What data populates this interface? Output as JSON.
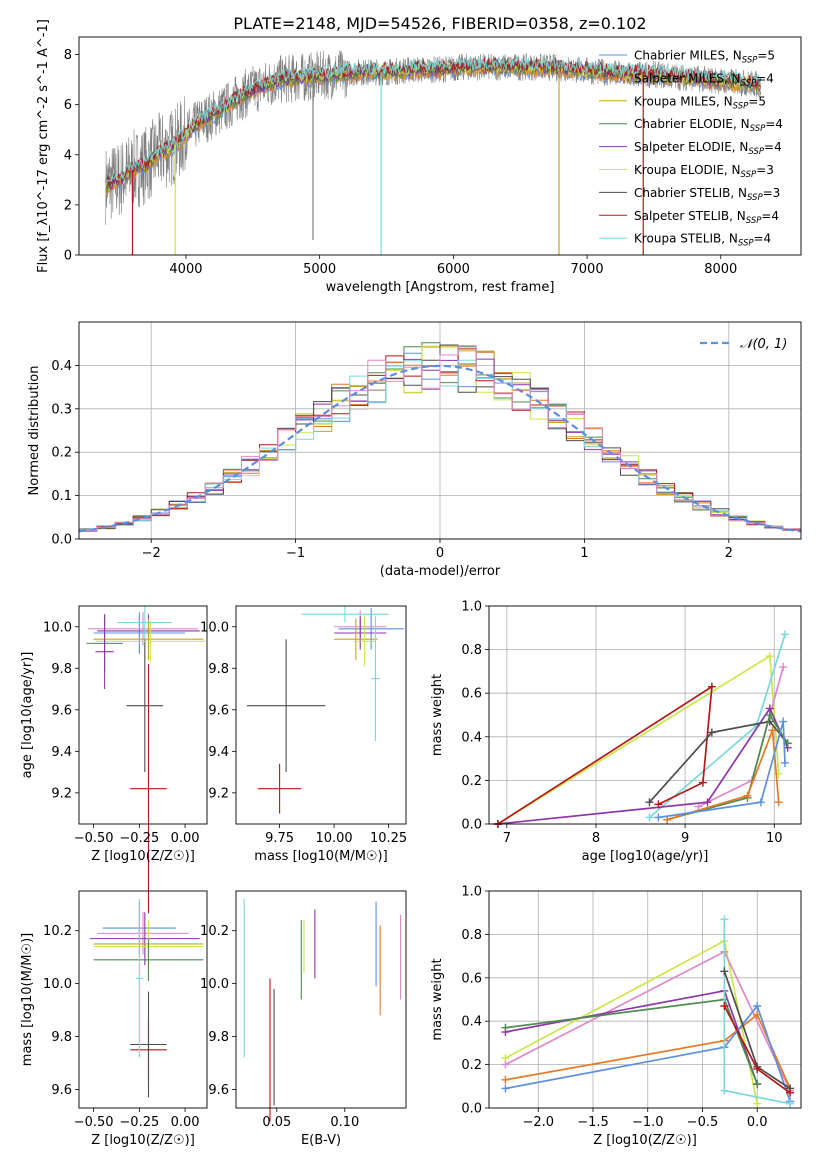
{
  "title": "PLATE=2148, MJD=54526, FIBERID=0358, z=0.102",
  "colors": {
    "chab_miles": "#5b8fe0",
    "salp_miles": "#e47a27",
    "kroupa_miles": "#c9a227",
    "chab_elodie": "#4f8a4f",
    "salp_elodie": "#8e35a8",
    "kroupa_elodie": "#c9e84a",
    "chab_stelib": "#4d4d4d",
    "salp_stelib": "#b41818",
    "kroupa_stelib": "#7ad8dc",
    "pink": "#e089c9",
    "data": "#808080",
    "gauss": "#5b8fe0"
  },
  "chart_data": [
    {
      "type": "line",
      "id": "spectrum",
      "xlabel": "wavelength [Angstrom, rest frame]",
      "ylabel": "Flux [f_λ10^-17 erg cm^-2 s^-1 A^-1]",
      "xlim": [
        3200,
        8600
      ],
      "ylim": [
        0,
        8.7
      ],
      "xticks": [
        4000,
        5000,
        6000,
        7000,
        8000
      ],
      "yticks": [
        0,
        2,
        4,
        6,
        8
      ],
      "legend_position": "right",
      "legend": [
        {
          "base": "Chabrier MILES, N",
          "sub": "SSP",
          "end": "=5",
          "color": "chab_miles"
        },
        {
          "base": "Salpeter MILES, N",
          "sub": "SSP",
          "end": "=4",
          "color": "salp_miles"
        },
        {
          "base": "Kroupa MILES, N",
          "sub": "SSP",
          "end": "=5",
          "color": "kroupa_miles"
        },
        {
          "base": "Chabrier ELODIE, N",
          "sub": "SSP",
          "end": "=4",
          "color": "chab_elodie"
        },
        {
          "base": "Salpeter ELODIE, N",
          "sub": "SSP",
          "end": "=4",
          "color": "salp_elodie"
        },
        {
          "base": "Kroupa ELODIE, N",
          "sub": "SSP",
          "end": "=3",
          "color": "kroupa_elodie"
        },
        {
          "base": "Chabrier STELIB, N",
          "sub": "SSP",
          "end": "=3",
          "color": "chab_stelib"
        },
        {
          "base": "Salpeter STELIB, N",
          "sub": "SSP",
          "end": "=4",
          "color": "salp_stelib"
        },
        {
          "base": "Kroupa STELIB, N",
          "sub": "SSP",
          "end": "=4",
          "color": "kroupa_stelib"
        }
      ],
      "continuum": {
        "x": [
          3400,
          3500,
          3600,
          3700,
          3800,
          3900,
          4000,
          4100,
          4200,
          4300,
          4400,
          4500,
          4700,
          4900,
          5100,
          5300,
          5500,
          5700,
          5900,
          6100,
          6300,
          6500,
          6700,
          6900,
          7100,
          7300,
          7500,
          7700,
          7900,
          8100,
          8300
        ],
        "y": [
          2.8,
          3.0,
          3.4,
          3.6,
          4.1,
          4.3,
          4.8,
          5.3,
          5.6,
          5.9,
          6.3,
          6.6,
          7.0,
          7.1,
          7.2,
          7.3,
          7.3,
          7.4,
          7.4,
          7.5,
          7.5,
          7.5,
          7.5,
          7.4,
          7.3,
          7.2,
          7.2,
          7.1,
          7.0,
          6.9,
          6.8
        ]
      },
      "spikes": [
        {
          "x": 3600,
          "y": 0.0,
          "color": "salp_stelib"
        },
        {
          "x": 3920,
          "y": 0.0,
          "color": "kroupa_elodie"
        },
        {
          "x": 4950,
          "y": 0.6,
          "color": "data"
        },
        {
          "x": 5460,
          "y": 0.0,
          "color": "kroupa_stelib"
        },
        {
          "x": 6790,
          "y": 0.0,
          "color": "kroupa_miles"
        },
        {
          "x": 7420,
          "y": 0.0,
          "color": "salp_stelib"
        }
      ]
    },
    {
      "type": "histogram",
      "id": "residuals",
      "xlabel": "(data-model)/error",
      "ylabel": "Normed distribution",
      "xlim": [
        -2.5,
        2.5
      ],
      "ylim": [
        0,
        0.5
      ],
      "xticks": [
        -2,
        -1,
        0,
        1,
        2
      ],
      "yticks": [
        0.0,
        0.1,
        0.2,
        0.3,
        0.4
      ],
      "grid": true,
      "legend": "𝒩(0, 1)",
      "legend_position": "top-right",
      "bins": 40
    },
    {
      "type": "errorbar",
      "id": "age_vs_Z",
      "xlabel": "Z [log10(Z/Z☉)]",
      "ylabel": "age  [log10(age/yr)]",
      "xlim": [
        -0.58,
        0.12
      ],
      "ylim": [
        9.05,
        10.1
      ],
      "xticks": [
        -0.5,
        -0.25,
        0.0
      ],
      "xticklabels": [
        "−0.50",
        "−0.25",
        "0.00"
      ],
      "yticks": [
        9.2,
        9.4,
        9.6,
        9.8,
        10.0
      ],
      "yticklabels": [
        "9.2",
        "9.4",
        "9.6",
        "9.8",
        "10.0"
      ],
      "points": [
        {
          "x": -0.2,
          "y": 9.22,
          "xe": 0.1,
          "ye": 0.6,
          "color": "salp_stelib"
        },
        {
          "x": -0.22,
          "y": 9.62,
          "xe": 0.1,
          "ye": 0.32,
          "color": "chab_stelib"
        },
        {
          "x": -0.25,
          "y": 9.97,
          "xe": 0.25,
          "ye": 0.1,
          "color": "chab_miles"
        },
        {
          "x": -0.2,
          "y": 9.98,
          "xe": 0.28,
          "ye": 0.08,
          "color": "salp_elodie"
        },
        {
          "x": -0.23,
          "y": 9.99,
          "xe": 0.3,
          "ye": 0.08,
          "color": "pink"
        },
        {
          "x": -0.2,
          "y": 9.94,
          "xe": 0.3,
          "ye": 0.1,
          "color": "kroupa_miles"
        },
        {
          "x": -0.19,
          "y": 9.93,
          "xe": 0.3,
          "ye": 0.1,
          "color": "kroupa_elodie"
        },
        {
          "x": -0.22,
          "y": 10.02,
          "xe": 0.15,
          "ye": 0.08,
          "color": "kroupa_stelib"
        },
        {
          "x": -0.44,
          "y": 9.92,
          "xe": 0.1,
          "ye": 0.14,
          "color": "chab_elodie"
        },
        {
          "x": -0.44,
          "y": 9.88,
          "xe": 0.05,
          "ye": 0.18,
          "color": "salp_elodie"
        }
      ]
    },
    {
      "type": "errorbar",
      "id": "age_vs_mass",
      "xlabel": "mass [log10(M/M☉)]",
      "ylabel": "",
      "xlim": [
        9.55,
        10.33
      ],
      "ylim": [
        9.05,
        10.1
      ],
      "xticks": [
        9.75,
        10.0,
        10.25
      ],
      "xticklabels": [
        "9.75",
        "10.00",
        "10.25"
      ],
      "yticks": [
        9.2,
        9.4,
        9.6,
        9.8,
        10.0
      ],
      "yticklabels": [
        "9.2",
        "9.4",
        "9.6",
        "9.8",
        "10.0"
      ],
      "points": [
        {
          "x": 9.75,
          "y": 9.22,
          "xe": 0.1,
          "ye": 0.12,
          "color": "salp_stelib"
        },
        {
          "x": 9.78,
          "y": 9.62,
          "xe": 0.18,
          "ye": 0.32,
          "color": "chab_stelib"
        },
        {
          "x": 10.17,
          "y": 9.99,
          "xe": 0.15,
          "ye": 0.1,
          "color": "chab_miles"
        },
        {
          "x": 10.12,
          "y": 10.0,
          "xe": 0.12,
          "ye": 0.08,
          "color": "pink"
        },
        {
          "x": 10.12,
          "y": 9.97,
          "xe": 0.12,
          "ye": 0.08,
          "color": "salp_elodie"
        },
        {
          "x": 10.1,
          "y": 9.94,
          "xe": 0.1,
          "ye": 0.1,
          "color": "kroupa_miles"
        },
        {
          "x": 10.14,
          "y": 9.93,
          "xe": 0.05,
          "ye": 0.12,
          "color": "kroupa_elodie"
        },
        {
          "x": 10.05,
          "y": 10.06,
          "xe": 0.2,
          "ye": 0.04,
          "color": "kroupa_stelib"
        },
        {
          "x": 10.19,
          "y": 9.75,
          "xe": 0.02,
          "ye": 0.3,
          "color": "kroupa_stelib"
        }
      ]
    },
    {
      "type": "line",
      "id": "weight_vs_age",
      "xlabel": "age  [log10(age/yr)]",
      "ylabel": "mass weight",
      "xlim": [
        6.8,
        10.3
      ],
      "ylim": [
        0,
        1.0
      ],
      "xticks": [
        7,
        8,
        9,
        10
      ],
      "yticks": [
        0.0,
        0.2,
        0.4,
        0.6,
        0.8,
        1.0
      ],
      "grid": true,
      "series": [
        {
          "color": "kroupa_elodie",
          "x": [
            6.9,
            9.95,
            10.05
          ],
          "y": [
            0.0,
            0.77,
            0.23
          ]
        },
        {
          "color": "kroupa_stelib",
          "x": [
            8.6,
            9.8,
            10.12
          ],
          "y": [
            0.03,
            0.45,
            0.87
          ]
        },
        {
          "color": "pink",
          "x": [
            9.15,
            9.75,
            10.1
          ],
          "y": [
            0.08,
            0.2,
            0.72
          ]
        },
        {
          "color": "salp_elodie",
          "x": [
            6.9,
            9.25,
            9.95,
            10.15
          ],
          "y": [
            0.0,
            0.1,
            0.53,
            0.35
          ]
        },
        {
          "color": "salp_stelib",
          "x": [
            8.7,
            9.2,
            9.3,
            6.9
          ],
          "y": [
            0.09,
            0.19,
            0.63,
            0.0
          ]
        },
        {
          "color": "chab_stelib",
          "x": [
            8.6,
            9.3,
            9.95,
            10.15
          ],
          "y": [
            0.1,
            0.42,
            0.47,
            0.37
          ]
        },
        {
          "color": "chab_elodie",
          "x": [
            8.8,
            9.7,
            9.95,
            10.15
          ],
          "y": [
            0.02,
            0.12,
            0.5,
            0.37
          ]
        },
        {
          "color": "salp_miles",
          "x": [
            8.8,
            9.7,
            9.98,
            10.05
          ],
          "y": [
            0.02,
            0.13,
            0.43,
            0.1
          ]
        },
        {
          "color": "chab_miles",
          "x": [
            8.7,
            9.85,
            10.1,
            10.12
          ],
          "y": [
            0.03,
            0.1,
            0.47,
            0.28
          ]
        }
      ]
    },
    {
      "type": "errorbar",
      "id": "mass_vs_Z",
      "xlabel": "Z [log10(Z/Z☉)]",
      "ylabel": "mass [log10(M/M☉)]",
      "xlim": [
        -0.58,
        0.12
      ],
      "ylim": [
        9.53,
        10.35
      ],
      "xticks": [
        -0.5,
        -0.25,
        0.0
      ],
      "xticklabels": [
        "−0.50",
        "−0.25",
        "0.00"
      ],
      "yticks": [
        9.6,
        9.8,
        10.0,
        10.2
      ],
      "yticklabels": [
        "9.6",
        "9.8",
        "10.0",
        "10.2"
      ],
      "points": [
        {
          "x": -0.2,
          "y": 9.75,
          "xe": 0.1,
          "ye": 0.12,
          "color": "salp_stelib"
        },
        {
          "x": -0.2,
          "y": 9.77,
          "xe": 0.1,
          "ye": 0.2,
          "color": "chab_stelib"
        },
        {
          "x": -0.25,
          "y": 10.21,
          "xe": 0.2,
          "ye": 0.1,
          "color": "chab_miles"
        },
        {
          "x": -0.23,
          "y": 10.19,
          "xe": 0.25,
          "ye": 0.08,
          "color": "pink"
        },
        {
          "x": -0.22,
          "y": 10.17,
          "xe": 0.3,
          "ye": 0.1,
          "color": "salp_elodie"
        },
        {
          "x": -0.2,
          "y": 10.15,
          "xe": 0.3,
          "ye": 0.08,
          "color": "kroupa_miles"
        },
        {
          "x": -0.2,
          "y": 10.14,
          "xe": 0.3,
          "ye": 0.1,
          "color": "kroupa_elodie"
        },
        {
          "x": -0.2,
          "y": 10.09,
          "xe": 0.3,
          "ye": 0.08,
          "color": "chab_elodie"
        },
        {
          "x": -0.25,
          "y": 10.02,
          "xe": 0.02,
          "ye": 0.3,
          "color": "kroupa_stelib"
        }
      ]
    },
    {
      "type": "errorbar",
      "id": "mass_vs_ebv",
      "xlabel": "E(B-V)",
      "ylabel": "",
      "xlim": [
        0.02,
        0.145
      ],
      "ylim": [
        9.53,
        10.35
      ],
      "xticks": [
        0.05,
        0.1
      ],
      "xticklabels": [
        "0.05",
        "0.10"
      ],
      "yticks": [
        9.6,
        9.8,
        10.0,
        10.2
      ],
      "yticklabels": [
        "9.6",
        "9.8",
        "10.0",
        "10.2"
      ],
      "points": [
        {
          "x": 0.026,
          "y": 10.02,
          "xe": 0,
          "ye": 0.3,
          "color": "kroupa_stelib"
        },
        {
          "x": 0.045,
          "y": 9.75,
          "xe": 0,
          "ye": 0.27,
          "color": "salp_stelib"
        },
        {
          "x": 0.048,
          "y": 9.76,
          "xe": 0,
          "ye": 0.22,
          "color": "chab_stelib"
        },
        {
          "x": 0.068,
          "y": 10.09,
          "xe": 0,
          "ye": 0.15,
          "color": "chab_elodie"
        },
        {
          "x": 0.07,
          "y": 10.14,
          "xe": 0,
          "ye": 0.1,
          "color": "kroupa_elodie"
        },
        {
          "x": 0.078,
          "y": 10.15,
          "xe": 0,
          "ye": 0.13,
          "color": "salp_elodie"
        },
        {
          "x": 0.123,
          "y": 10.15,
          "xe": 0,
          "ye": 0.16,
          "color": "chab_miles"
        },
        {
          "x": 0.126,
          "y": 10.05,
          "xe": 0,
          "ye": 0.17,
          "color": "salp_miles"
        },
        {
          "x": 0.141,
          "y": 10.1,
          "xe": 0,
          "ye": 0.16,
          "color": "pink"
        }
      ]
    },
    {
      "type": "line",
      "id": "weight_vs_Z",
      "xlabel": "Z [log10(Z/Z☉)]",
      "ylabel": "mass weight",
      "xlim": [
        -2.45,
        0.4
      ],
      "ylim": [
        0,
        1.0
      ],
      "xticks": [
        -2.0,
        -1.5,
        -1.0,
        -0.5,
        0.0
      ],
      "xticklabels": [
        "−2.0",
        "−1.5",
        "−1.0",
        "−0.5",
        "0.0"
      ],
      "yticks": [
        0.0,
        0.2,
        0.4,
        0.6,
        0.8,
        1.0
      ],
      "grid": true,
      "series": [
        {
          "color": "kroupa_elodie",
          "x": [
            -2.3,
            -0.3,
            0.0
          ],
          "y": [
            0.23,
            0.77,
            0.02
          ]
        },
        {
          "color": "pink",
          "x": [
            -2.3,
            -0.3,
            0.3
          ],
          "y": [
            0.2,
            0.72,
            0.08
          ]
        },
        {
          "color": "salp_elodie",
          "x": [
            -2.3,
            -0.3,
            0.0
          ],
          "y": [
            0.35,
            0.54,
            0.11
          ]
        },
        {
          "color": "chab_elodie",
          "x": [
            -2.3,
            -0.3,
            0.0
          ],
          "y": [
            0.37,
            0.5,
            0.11
          ]
        },
        {
          "color": "salp_miles",
          "x": [
            -2.3,
            -0.3,
            0.0,
            0.3
          ],
          "y": [
            0.13,
            0.31,
            0.43,
            0.09
          ]
        },
        {
          "color": "chab_miles",
          "x": [
            -2.3,
            -0.3,
            0.0,
            0.3
          ],
          "y": [
            0.09,
            0.28,
            0.47,
            0.03
          ]
        },
        {
          "color": "kroupa_stelib",
          "x": [
            -0.3,
            -0.3,
            0.3
          ],
          "y": [
            0.87,
            0.08,
            0.02
          ]
        },
        {
          "color": "chab_stelib",
          "x": [
            -0.3,
            0.0,
            0.3
          ],
          "y": [
            0.63,
            0.19,
            0.09
          ]
        },
        {
          "color": "salp_stelib",
          "x": [
            -0.3,
            0.0,
            0.3
          ],
          "y": [
            0.47,
            0.18,
            0.07
          ]
        }
      ]
    }
  ]
}
